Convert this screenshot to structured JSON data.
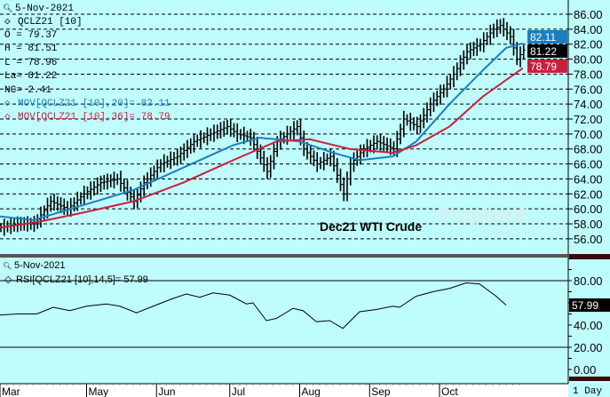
{
  "price_panel": {
    "date": "5-Nov-2021",
    "symbol": "QCLZ21 [10]",
    "open": "O = 79.37",
    "high": "H = 81.51",
    "low": "L = 78.96",
    "last": "La= 81.22",
    "net_change": "NC= 2.41",
    "ma20_label": "MOV[QCLZ21 [10],20]= 82.11",
    "ma36_label": "MOV[QCLZ21 [10],36]= 78.79",
    "title": "Dec21 WTI Crude",
    "watermark": "ProphetX powered by DTN",
    "last_tags": {
      "ma20": "82.11",
      "last": "81.22",
      "ma36": "78.79"
    }
  },
  "rsi_panel": {
    "date": "5-Nov-2021",
    "label": "RSI[QCLZ21 [10],14,5]= 57.99",
    "last_tag": "57.99"
  },
  "interval": "1 Day",
  "colors": {
    "background": "#bffcfc",
    "ma20": "#1a7fc1",
    "ma36": "#c8203c",
    "bars": "#000000"
  },
  "chart_data": [
    {
      "type": "ohlc",
      "title": "Dec21 WTI Crude",
      "x_unit": "trading-bar index",
      "xlim": [
        0,
        157
      ],
      "ylim": [
        55,
        87
      ],
      "yticks": [
        "56.00",
        "58.00",
        "60.00",
        "62.00",
        "64.00",
        "66.00",
        "68.00",
        "70.00",
        "72.00",
        "74.00",
        "76.00",
        "78.00",
        "80.00",
        "82.00",
        "84.00",
        "86.00"
      ],
      "month_labels": [
        {
          "label": "Mar",
          "index": 0
        },
        {
          "label": "May",
          "index": 26
        },
        {
          "label": "Jun",
          "index": 47
        },
        {
          "label": "Jul",
          "index": 69
        },
        {
          "label": "Aug",
          "index": 90
        },
        {
          "label": "Sep",
          "index": 111
        },
        {
          "label": "Oct",
          "index": 132
        }
      ],
      "close_path": [
        [
          0,
          57.5
        ],
        [
          5,
          58
        ],
        [
          10,
          58
        ],
        [
          15,
          61
        ],
        [
          20,
          60
        ],
        [
          25,
          62
        ],
        [
          30,
          63.5
        ],
        [
          35,
          64
        ],
        [
          40,
          61
        ],
        [
          43,
          63.5
        ],
        [
          48,
          66
        ],
        [
          53,
          67
        ],
        [
          58,
          69
        ],
        [
          63,
          70
        ],
        [
          68,
          71
        ],
        [
          71,
          70
        ],
        [
          75,
          69.5
        ],
        [
          80,
          65
        ],
        [
          83,
          69
        ],
        [
          89,
          71
        ],
        [
          91,
          68
        ],
        [
          95,
          66
        ],
        [
          99,
          67
        ],
        [
          103,
          62
        ],
        [
          105,
          66
        ],
        [
          109,
          68
        ],
        [
          113,
          69
        ],
        [
          118,
          68
        ],
        [
          121,
          72
        ],
        [
          125,
          71
        ],
        [
          129,
          74
        ],
        [
          133,
          76
        ],
        [
          136,
          78
        ],
        [
          140,
          81
        ],
        [
          144,
          82
        ],
        [
          148,
          84
        ],
        [
          150,
          84.5
        ],
        [
          153,
          83
        ],
        [
          155,
          80
        ],
        [
          157,
          81.22
        ]
      ],
      "series": [
        {
          "name": "MOV 20",
          "color": "#1a7fc1",
          "points": [
            [
              0,
              59
            ],
            [
              10,
              58.5
            ],
            [
              25,
              60.5
            ],
            [
              40,
              62.5
            ],
            [
              55,
              65.5
            ],
            [
              70,
              68.5
            ],
            [
              78,
              69.5
            ],
            [
              90,
              69
            ],
            [
              100,
              67.5
            ],
            [
              108,
              66.5
            ],
            [
              118,
              67
            ],
            [
              125,
              69
            ],
            [
              135,
              74
            ],
            [
              145,
              78.5
            ],
            [
              152,
              81.5
            ],
            [
              157,
              82.11
            ]
          ]
        },
        {
          "name": "MOV 36",
          "color": "#c8203c",
          "points": [
            [
              0,
              57.5
            ],
            [
              12,
              58.3
            ],
            [
              25,
              59.5
            ],
            [
              40,
              61
            ],
            [
              55,
              63.5
            ],
            [
              70,
              66.5
            ],
            [
              83,
              69
            ],
            [
              93,
              69.3
            ],
            [
              105,
              68
            ],
            [
              118,
              67.5
            ],
            [
              125,
              68.5
            ],
            [
              135,
              71
            ],
            [
              145,
              75
            ],
            [
              157,
              78.79
            ]
          ]
        }
      ]
    },
    {
      "type": "line",
      "title": "RSI[QCLZ21 [10],14,5]",
      "ylim": [
        -5,
        100
      ],
      "yticks": [
        "0.00",
        "20.00",
        "40.00",
        "80.00"
      ],
      "reference_lines": [
        20,
        80
      ],
      "points": [
        [
          0,
          49
        ],
        [
          5,
          50
        ],
        [
          11,
          50
        ],
        [
          16,
          56
        ],
        [
          21,
          53
        ],
        [
          26,
          57
        ],
        [
          32,
          59
        ],
        [
          36,
          57
        ],
        [
          41,
          51
        ],
        [
          46,
          57
        ],
        [
          52,
          64
        ],
        [
          56,
          68
        ],
        [
          60,
          65
        ],
        [
          64,
          69
        ],
        [
          69,
          67
        ],
        [
          74,
          59
        ],
        [
          76,
          60
        ],
        [
          80,
          44
        ],
        [
          83,
          46
        ],
        [
          88,
          55
        ],
        [
          91,
          53
        ],
        [
          95,
          43
        ],
        [
          99,
          44
        ],
        [
          103,
          37
        ],
        [
          108,
          52
        ],
        [
          113,
          54
        ],
        [
          118,
          57
        ],
        [
          120,
          56
        ],
        [
          125,
          66
        ],
        [
          130,
          70
        ],
        [
          135,
          73
        ],
        [
          140,
          78
        ],
        [
          144,
          77
        ],
        [
          149,
          66
        ],
        [
          152,
          57.99
        ]
      ]
    }
  ]
}
